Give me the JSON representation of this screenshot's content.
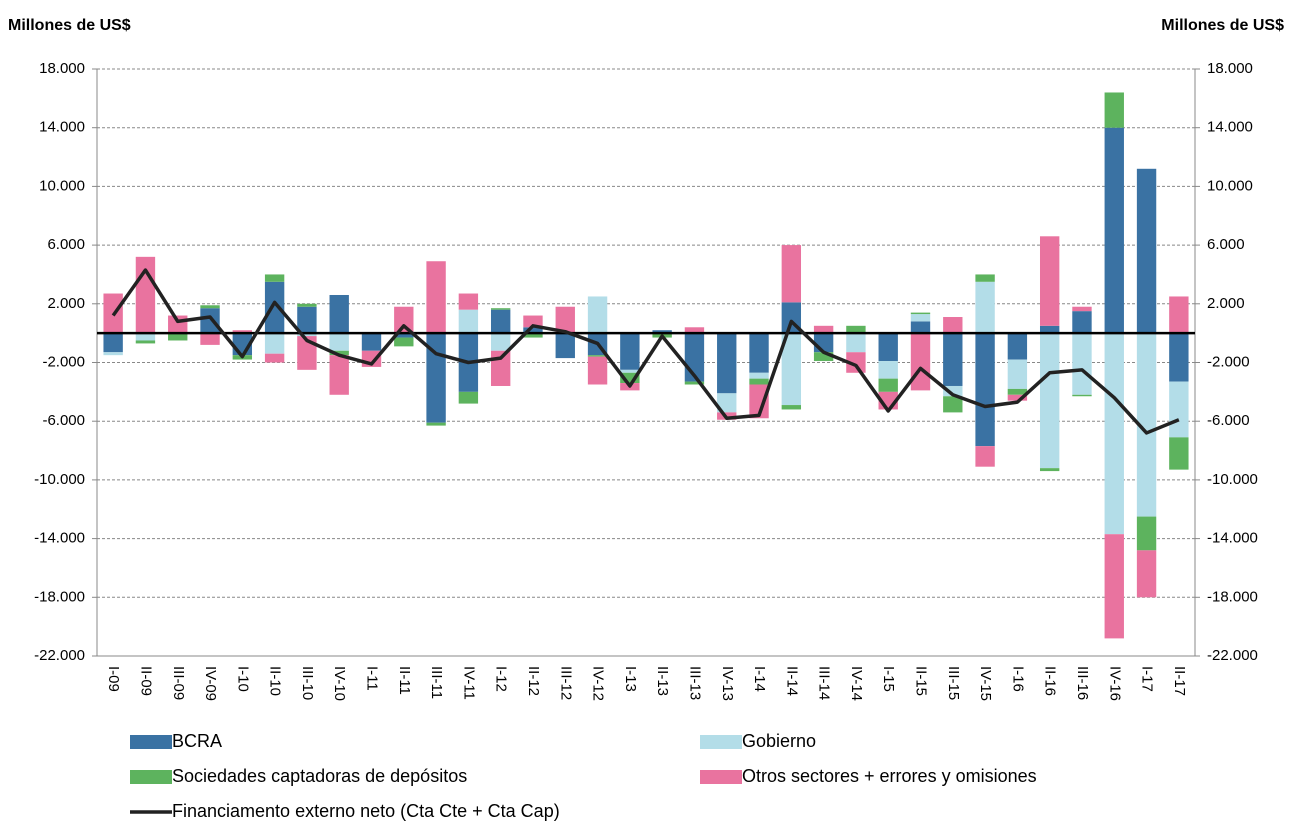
{
  "chart_data": {
    "type": "bar",
    "stacked": true,
    "y_label": "Millones de US$",
    "y2_label": "Millones de US$",
    "categories": [
      "I-09",
      "II-09",
      "III-09",
      "IV-09",
      "I-10",
      "II-10",
      "III-10",
      "IV-10",
      "I-11",
      "II-11",
      "III-11",
      "IV-11",
      "I-12",
      "II-12",
      "III-12",
      "IV-12",
      "I-13",
      "II-13",
      "III-13",
      "IV-13",
      "I-14",
      "II-14",
      "III-14",
      "IV-14",
      "I-15",
      "II-15",
      "III-15",
      "IV-15",
      "I-16",
      "II-16",
      "III-16",
      "IV-16",
      "I-17",
      "II-17"
    ],
    "series": [
      {
        "name": "BCRA",
        "color": "#3a72a3",
        "values": [
          -1300,
          0,
          0,
          1700,
          -1500,
          3500,
          1800,
          2600,
          -1200,
          -300,
          -6100,
          -4000,
          1600,
          400,
          -1700,
          -1500,
          -2500,
          200,
          -3300,
          -4100,
          -2700,
          2100,
          -1300,
          0,
          -1900,
          800,
          -3600,
          -7700,
          -1800,
          500,
          1500,
          14000,
          11200,
          -3300
        ]
      },
      {
        "name": "Gobierno",
        "color": "#b3dde8",
        "values": [
          -200,
          -500,
          0,
          0,
          0,
          -1400,
          -200,
          -1200,
          0,
          0,
          0,
          1600,
          -1200,
          0,
          0,
          2500,
          -200,
          0,
          0,
          -1300,
          -400,
          -4900,
          0,
          -1300,
          -1200,
          500,
          -700,
          3500,
          -2000,
          -9200,
          -4200,
          -13700,
          -12500,
          -3800
        ]
      },
      {
        "name": "Sociedades captadoras de depósitos",
        "color": "#5db35e",
        "values": [
          0,
          -200,
          -500,
          200,
          -300,
          500,
          200,
          -300,
          0,
          -600,
          -200,
          -800,
          100,
          -300,
          0,
          -100,
          -700,
          -300,
          -200,
          0,
          -400,
          -300,
          -600,
          500,
          -900,
          100,
          -1100,
          500,
          -400,
          -200,
          -100,
          2400,
          -2300,
          -2200
        ]
      },
      {
        "name": "Otros sectores + errores y omisiones",
        "color": "#e9739f",
        "values": [
          2700,
          5200,
          1200,
          -800,
          200,
          -600,
          -2300,
          -2700,
          -1100,
          1800,
          4900,
          1100,
          -2400,
          800,
          1800,
          -1900,
          -500,
          0,
          400,
          -500,
          -2300,
          3900,
          500,
          -1400,
          -1200,
          -3900,
          1100,
          -1400,
          -400,
          6100,
          300,
          -7100,
          -3200,
          2500
        ]
      },
      {
        "name": "Financiamento externo neto (Cta Cte + Cta Cap)",
        "type": "line",
        "color": "#222222",
        "values": [
          1200,
          4300,
          800,
          1100,
          -1600,
          2100,
          -500,
          -1500,
          -2100,
          500,
          -1400,
          -2000,
          -1700,
          500,
          100,
          -700,
          -3600,
          -200,
          -2900,
          -5800,
          -5600,
          800,
          -1300,
          -2200,
          -5300,
          -2400,
          -4200,
          -5000,
          -4700,
          -2700,
          -2500,
          -4400,
          -6800,
          -5900
        ]
      }
    ],
    "ylim": [
      -22000,
      18000
    ],
    "yticks": [
      {
        "value": -22000,
        "label": "-22.000"
      },
      {
        "value": -18000,
        "label": "-18.000"
      },
      {
        "value": -14000,
        "label": "-14.000"
      },
      {
        "value": -10000,
        "label": "-10.000"
      },
      {
        "value": -6000,
        "label": "-6.000"
      },
      {
        "value": -2000,
        "label": "-2.000"
      },
      {
        "value": 2000,
        "label": "2.000"
      },
      {
        "value": 6000,
        "label": "6.000"
      },
      {
        "value": 10000,
        "label": "10.000"
      },
      {
        "value": 14000,
        "label": "14.000"
      },
      {
        "value": 18000,
        "label": "18.000"
      }
    ],
    "y2lim": [
      -22000,
      18000
    ],
    "y2ticks": [
      {
        "value": -22000,
        "label": "-22.000"
      },
      {
        "value": -18000,
        "label": "-18.000"
      },
      {
        "value": -14000,
        "label": "-14.000"
      },
      {
        "value": -10000,
        "label": "-10.000"
      },
      {
        "value": -6000,
        "label": "-6.000"
      },
      {
        "value": -2000,
        "label": "-2.000"
      },
      {
        "value": 2000,
        "label": "2.000"
      },
      {
        "value": 6000,
        "label": "6.000"
      },
      {
        "value": 10000,
        "label": "10.000"
      },
      {
        "value": 14000,
        "label": "14.000"
      },
      {
        "value": 18000,
        "label": "18.000"
      }
    ],
    "grid": true
  }
}
